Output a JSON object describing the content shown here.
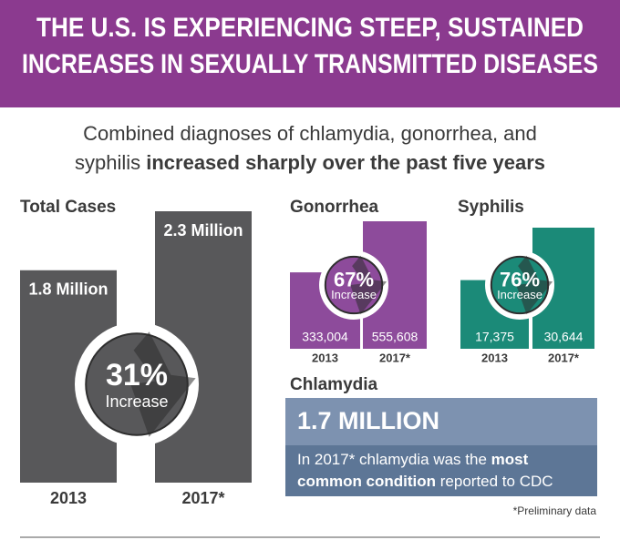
{
  "header": {
    "title": [
      "THE U.S. IS EXPERIENCING STEEP, SUSTAINED",
      "INCREASES IN SEXUALLY TRANSMITTED DISEASES"
    ]
  },
  "intro": {
    "line1": "Combined diagnoses of chlamydia, gonorrhea, and",
    "line2": "syphilis ",
    "line2_bold": "increased sharply over the past five years"
  },
  "chart_data": [
    {
      "type": "bar",
      "title": "Total Cases",
      "categories": [
        "2013",
        "2017*"
      ],
      "values": [
        1800000,
        2300000
      ],
      "value_labels": [
        "1.8 Million",
        "2.3 Million"
      ],
      "color": "#58585a",
      "annotation": "31%",
      "annotation_sub": "Increase"
    },
    {
      "type": "bar",
      "title": "Gonorrhea",
      "categories": [
        "2013",
        "2017*"
      ],
      "values": [
        333004,
        555608
      ],
      "value_labels": [
        "333,004",
        "555,608"
      ],
      "color": "#8d4b9b",
      "annotation": "67%",
      "annotation_sub": "Increase"
    },
    {
      "type": "bar",
      "title": "Syphilis",
      "categories": [
        "2013",
        "2017*"
      ],
      "values": [
        17375,
        30644
      ],
      "value_labels": [
        "17,375",
        "30,644"
      ],
      "color": "#1b8a78",
      "annotation": "76%",
      "annotation_sub": "Increase"
    }
  ],
  "chlamydia": {
    "title": "Chlamydia",
    "heading": "1.7 MILLION",
    "body": [
      [
        "In 2017* chlamydia was the ",
        "most"
      ],
      [
        "common condition",
        " reported to CDC"
      ]
    ]
  },
  "footnote": "*Preliminary data"
}
